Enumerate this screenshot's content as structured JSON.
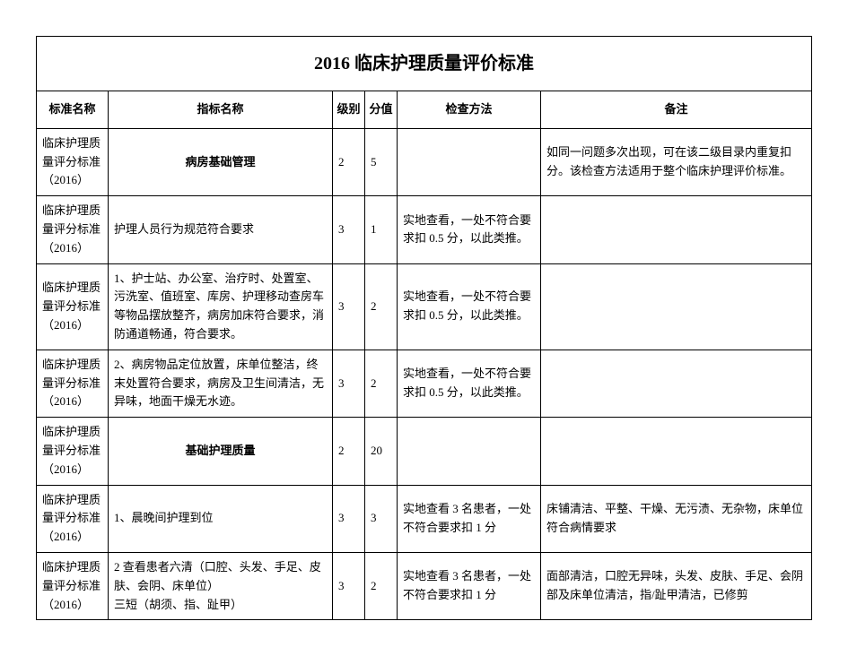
{
  "title": "2016 临床护理质量评价标准",
  "columns": {
    "standard_name": "标准名称",
    "indicator_name": "指标名称",
    "level": "级别",
    "score": "分值",
    "method": "检查方法",
    "note": "备注"
  },
  "std_label": "临床护理质量评分标准（2016）",
  "rows": [
    {
      "indicator": "病房基础管理",
      "indicator_bold": true,
      "level": "2",
      "score": "5",
      "method": "",
      "note": "如同一问题多次出现，可在该二级目录内重复扣分。该检查方法适用于整个临床护理评价标准。"
    },
    {
      "indicator": "护理人员行为规范符合要求",
      "indicator_bold": false,
      "level": "3",
      "score": "1",
      "method": "实地查看，一处不符合要求扣 0.5 分，以此类推。",
      "note": ""
    },
    {
      "indicator": "1、护士站、办公室、治疗时、处置室、污洗室、值班室、库房、护理移动查房车等物品摆放整齐，病房加床符合要求，消防通道畅通，符合要求。",
      "indicator_bold": false,
      "level": "3",
      "score": "2",
      "method": "实地查看，一处不符合要求扣 0.5 分，以此类推。",
      "note": ""
    },
    {
      "indicator": "2、病房物品定位放置，床单位整洁，终末处置符合要求，病房及卫生间清洁，无异味，地面干燥无水迹。",
      "indicator_bold": false,
      "level": "3",
      "score": "2",
      "method": "实地查看，一处不符合要求扣 0.5 分，以此类推。",
      "note": ""
    },
    {
      "indicator": "基础护理质量",
      "indicator_bold": true,
      "level": "2",
      "score": "20",
      "method": "",
      "note": ""
    },
    {
      "indicator": "1、晨晚间护理到位",
      "indicator_bold": false,
      "level": "3",
      "score": "3",
      "method": "实地查看 3 名患者，一处不符合要求扣 1 分",
      "note": "床铺清洁、平整、干燥、无污渍、无杂物，床单位符合病情要求"
    },
    {
      "indicator": "2 查看患者六清（口腔、头发、手足、皮肤、会阴、床单位）\n三短（胡须、指、趾甲）",
      "indicator_bold": false,
      "level": "3",
      "score": "2",
      "method": "实地查看 3 名患者，一处不符合要求扣 1 分",
      "note": "面部清洁，口腔无异味，头发、皮肤、手足、会阴部及床单位清洁，指/趾甲清洁，已修剪"
    }
  ]
}
